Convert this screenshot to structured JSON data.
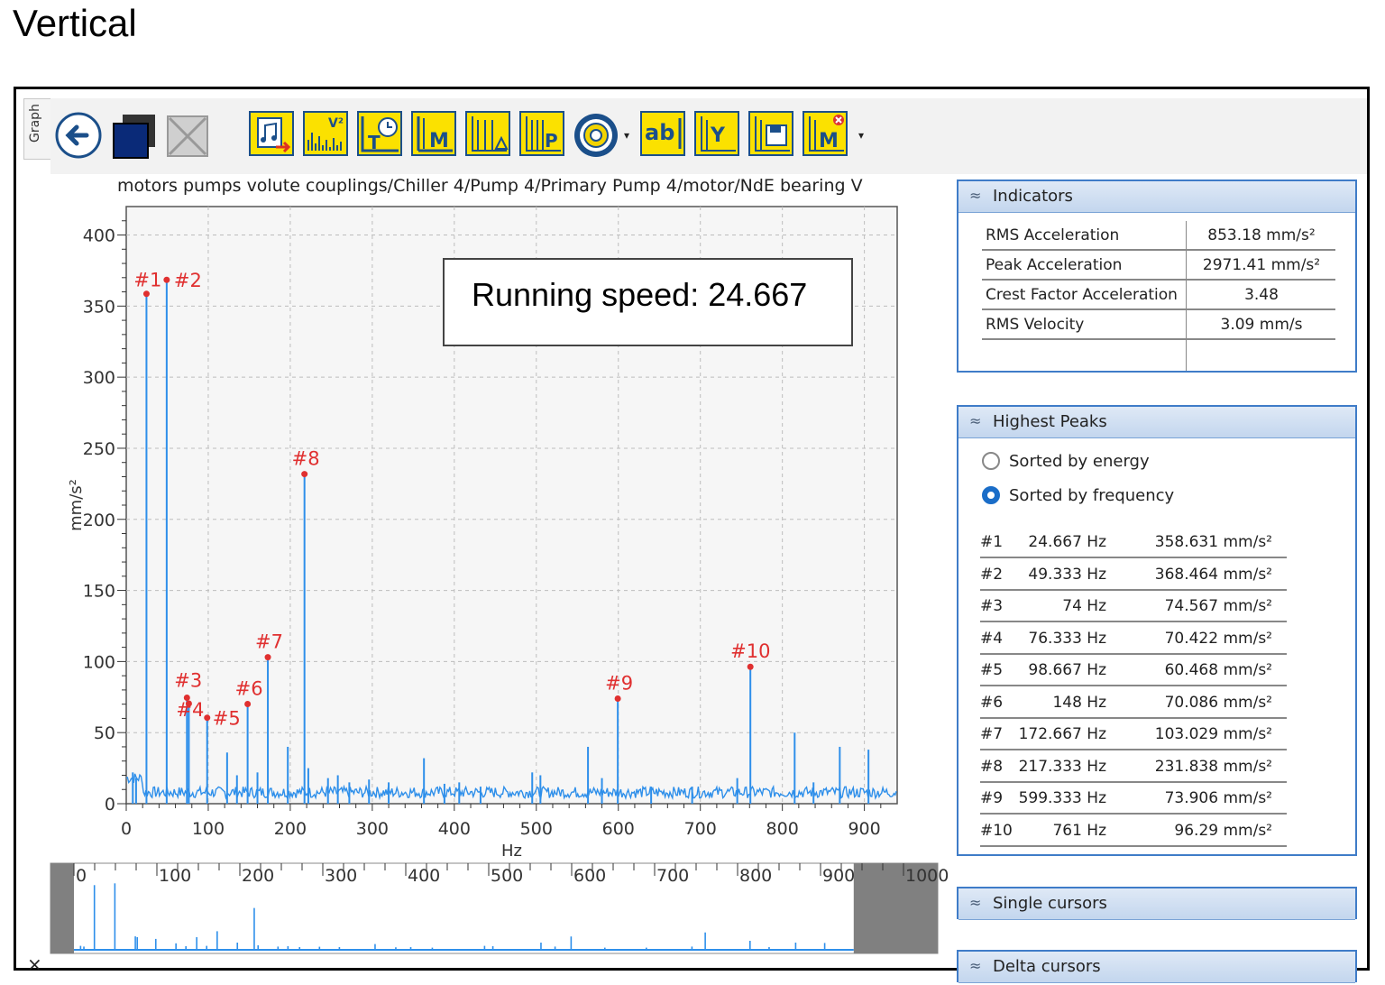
{
  "page_heading": "Vertical",
  "side_tab": "Graph",
  "plot_title": "motors pumps volute couplings/Chiller 4/Pump 4/Primary Pump 4/motor/NdE bearing V",
  "annotation": "Running speed: 24.667",
  "colors": {
    "trace": "#2e8fea",
    "peak_marker": "#e03030",
    "panel_border": "#3f7cc8",
    "toolbar_button": "#fbe100"
  },
  "toolbar": {
    "buttons": [
      {
        "icon": "back-arrow-icon"
      },
      {
        "icon": "overlay-windows-icon"
      },
      {
        "icon": "disabled-image-icon"
      },
      {
        "icon": "export-music-icon"
      },
      {
        "icon": "spectrum-ve-icon",
        "text": "V²"
      },
      {
        "icon": "timer-t-icon",
        "text": "T"
      },
      {
        "icon": "marker-m-icon",
        "text": "M"
      },
      {
        "icon": "harmonic-markers-icon"
      },
      {
        "icon": "peak-p-icon",
        "text": "P"
      },
      {
        "icon": "bearing-icon"
      },
      {
        "icon": "label-ab-icon",
        "text": "ab"
      },
      {
        "icon": "y-cursor-icon",
        "text": "Y"
      },
      {
        "icon": "save-cursor-icon"
      },
      {
        "icon": "remove-marker-icon",
        "text": "M"
      }
    ]
  },
  "chart_data": {
    "type": "line",
    "title": "motors pumps volute couplings/Chiller 4/Pump 4/Primary Pump 4/motor/NdE bearing V",
    "xlabel": "Hz",
    "ylabel": "mm/s²",
    "xlim": [
      0,
      940
    ],
    "ylim": [
      0,
      420
    ],
    "x_ticks": [
      0,
      100,
      200,
      300,
      400,
      500,
      600,
      700,
      800,
      900
    ],
    "y_ticks": [
      0,
      50,
      100,
      150,
      200,
      250,
      300,
      350,
      400
    ],
    "grid": true,
    "peaks": [
      {
        "label": "#1",
        "x": 24.667,
        "y": 358.631
      },
      {
        "label": "#2",
        "x": 49.333,
        "y": 368.464
      },
      {
        "label": "#3",
        "x": 74,
        "y": 74.567
      },
      {
        "label": "#4",
        "x": 76.333,
        "y": 70.422
      },
      {
        "label": "#5",
        "x": 98.667,
        "y": 60.468
      },
      {
        "label": "#6",
        "x": 148,
        "y": 70.086
      },
      {
        "label": "#7",
        "x": 172.667,
        "y": 103.029
      },
      {
        "label": "#8",
        "x": 217.333,
        "y": 231.838
      },
      {
        "label": "#9",
        "x": 599.333,
        "y": 73.906
      },
      {
        "label": "#10",
        "x": 761,
        "y": 96.29
      }
    ],
    "other_spikes": [
      {
        "x": 8,
        "y": 22
      },
      {
        "x": 12,
        "y": 18
      },
      {
        "x": 123,
        "y": 36
      },
      {
        "x": 135,
        "y": 20
      },
      {
        "x": 160,
        "y": 22
      },
      {
        "x": 197,
        "y": 40
      },
      {
        "x": 222,
        "y": 25
      },
      {
        "x": 246,
        "y": 18
      },
      {
        "x": 258,
        "y": 20
      },
      {
        "x": 272,
        "y": 15
      },
      {
        "x": 296,
        "y": 17
      },
      {
        "x": 320,
        "y": 15
      },
      {
        "x": 363,
        "y": 32
      },
      {
        "x": 388,
        "y": 14
      },
      {
        "x": 406,
        "y": 15
      },
      {
        "x": 432,
        "y": 12
      },
      {
        "x": 495,
        "y": 22
      },
      {
        "x": 505,
        "y": 20
      },
      {
        "x": 563,
        "y": 40
      },
      {
        "x": 580,
        "y": 18
      },
      {
        "x": 640,
        "y": 12
      },
      {
        "x": 690,
        "y": 12
      },
      {
        "x": 745,
        "y": 18
      },
      {
        "x": 815,
        "y": 50
      },
      {
        "x": 838,
        "y": 15
      },
      {
        "x": 870,
        "y": 40
      },
      {
        "x": 905,
        "y": 38
      }
    ]
  },
  "navigator": {
    "x_ticks": [
      0,
      100,
      200,
      300,
      400,
      500,
      600,
      700,
      800,
      900,
      1000
    ]
  },
  "indicators": {
    "title": "Indicators",
    "rows": [
      {
        "label": "RMS Acceleration",
        "value": "853.18 mm/s²"
      },
      {
        "label": "Peak Acceleration",
        "value": "2971.41 mm/s²"
      },
      {
        "label": "Crest Factor Acceleration",
        "value": "3.48"
      },
      {
        "label": "RMS Velocity",
        "value": "3.09 mm/s"
      }
    ]
  },
  "highest_peaks": {
    "title": "Highest Peaks",
    "sort_energy": "Sorted by energy",
    "sort_frequency": "Sorted by frequency",
    "selected": "Sorted by frequency",
    "rows": [
      {
        "id": "#1",
        "freq": "24.667 Hz",
        "amp": "358.631 mm/s²"
      },
      {
        "id": "#2",
        "freq": "49.333 Hz",
        "amp": "368.464 mm/s²"
      },
      {
        "id": "#3",
        "freq": "74 Hz",
        "amp": "74.567 mm/s²"
      },
      {
        "id": "#4",
        "freq": "76.333 Hz",
        "amp": "70.422 mm/s²"
      },
      {
        "id": "#5",
        "freq": "98.667 Hz",
        "amp": "60.468 mm/s²"
      },
      {
        "id": "#6",
        "freq": "148 Hz",
        "amp": "70.086 mm/s²"
      },
      {
        "id": "#7",
        "freq": "172.667 Hz",
        "amp": "103.029 mm/s²"
      },
      {
        "id": "#8",
        "freq": "217.333 Hz",
        "amp": "231.838 mm/s²"
      },
      {
        "id": "#9",
        "freq": "599.333 Hz",
        "amp": "73.906 mm/s²"
      },
      {
        "id": "#10",
        "freq": "761 Hz",
        "amp": "96.29 mm/s²"
      }
    ]
  },
  "single_cursors": {
    "title": "Single cursors"
  },
  "delta_cursors": {
    "title": "Delta cursors"
  },
  "close_glyph": "×"
}
